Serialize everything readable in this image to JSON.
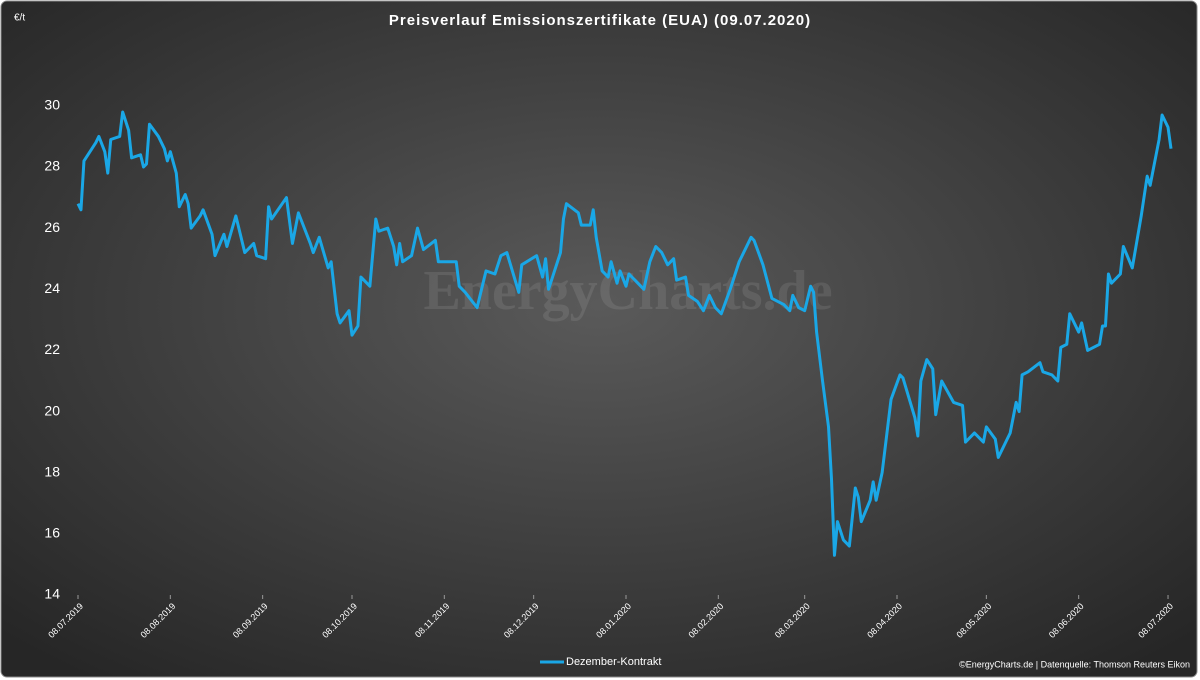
{
  "chart_data": {
    "type": "line",
    "title": "Preisverlauf Emissionszertifikate (EUA) (09.07.2020)",
    "y_unit": "€/t",
    "watermark": "EnergyCharts.de",
    "source": "©EnergyCharts.de | Datenquelle: Thomson Reuters Eikon",
    "grid": false,
    "legend": "bottom",
    "xlim": [
      "2019-07-08",
      "2020-07-09"
    ],
    "xticks": [
      {
        "value": "2019-07-08",
        "label": "08.07.2019"
      },
      {
        "value": "2019-08-08",
        "label": "08.08.2019"
      },
      {
        "value": "2019-09-08",
        "label": "08.09.2019"
      },
      {
        "value": "2019-10-08",
        "label": "08.10.2019"
      },
      {
        "value": "2019-11-08",
        "label": "08.11.2019"
      },
      {
        "value": "2019-12-08",
        "label": "08.12.2019"
      },
      {
        "value": "2020-01-08",
        "label": "08.01.2020"
      },
      {
        "value": "2020-02-08",
        "label": "08.02.2020"
      },
      {
        "value": "2020-03-08",
        "label": "08.03.2020"
      },
      {
        "value": "2020-04-08",
        "label": "08.04.2020"
      },
      {
        "value": "2020-05-08",
        "label": "08.05.2020"
      },
      {
        "value": "2020-06-08",
        "label": "08.06.2020"
      },
      {
        "value": "2020-07-08",
        "label": "08.07.2020"
      }
    ],
    "ylim": [
      14,
      31.5
    ],
    "yticks": [
      14,
      16,
      18,
      20,
      22,
      24,
      26,
      28,
      30
    ],
    "x": [
      "2019-07-08",
      "2019-07-09",
      "2019-07-10",
      "2019-07-14",
      "2019-07-15",
      "2019-07-17",
      "2019-07-18",
      "2019-07-19",
      "2019-07-22",
      "2019-07-23",
      "2019-07-25",
      "2019-07-26",
      "2019-07-29",
      "2019-07-30",
      "2019-07-31",
      "2019-08-01",
      "2019-08-04",
      "2019-08-06",
      "2019-08-07",
      "2019-08-08",
      "2019-08-10",
      "2019-08-11",
      "2019-08-13",
      "2019-08-14",
      "2019-08-15",
      "2019-08-18",
      "2019-08-19",
      "2019-08-22",
      "2019-08-23",
      "2019-08-26",
      "2019-08-27",
      "2019-08-30",
      "2019-09-01",
      "2019-09-02",
      "2019-09-05",
      "2019-09-06",
      "2019-09-09",
      "2019-09-10",
      "2019-09-11",
      "2019-09-16",
      "2019-09-18",
      "2019-09-20",
      "2019-09-24",
      "2019-09-25",
      "2019-09-27",
      "2019-09-30",
      "2019-10-01",
      "2019-10-03",
      "2019-10-04",
      "2019-10-07",
      "2019-10-08",
      "2019-10-10",
      "2019-10-11",
      "2019-10-14",
      "2019-10-16",
      "2019-10-17",
      "2019-10-20",
      "2019-10-22",
      "2019-10-23",
      "2019-10-24",
      "2019-10-25",
      "2019-10-28",
      "2019-10-30",
      "2019-11-01",
      "2019-11-05",
      "2019-11-06",
      "2019-11-12",
      "2019-11-13",
      "2019-11-15",
      "2019-11-19",
      "2019-11-22",
      "2019-11-25",
      "2019-11-27",
      "2019-11-29",
      "2019-12-03",
      "2019-12-04",
      "2019-12-09",
      "2019-12-11",
      "2019-12-12",
      "2019-12-13",
      "2019-12-17",
      "2019-12-18",
      "2019-12-19",
      "2019-12-23",
      "2019-12-24",
      "2019-12-27",
      "2019-12-28",
      "2019-12-29",
      "2019-12-31",
      "2020-01-02",
      "2020-01-03",
      "2020-01-05",
      "2020-01-06",
      "2020-01-08",
      "2020-01-09",
      "2020-01-14",
      "2020-01-16",
      "2020-01-18",
      "2020-01-20",
      "2020-01-22",
      "2020-01-24",
      "2020-01-25",
      "2020-01-28",
      "2020-01-29",
      "2020-02-01",
      "2020-02-03",
      "2020-02-05",
      "2020-02-07",
      "2020-02-09",
      "2020-02-12",
      "2020-02-15",
      "2020-02-19",
      "2020-02-20",
      "2020-02-23",
      "2020-02-26",
      "2020-03-01",
      "2020-03-03",
      "2020-03-04",
      "2020-03-06",
      "2020-03-08",
      "2020-03-10",
      "2020-03-11",
      "2020-03-12",
      "2020-03-14",
      "2020-03-16",
      "2020-03-17",
      "2020-03-18",
      "2020-03-19",
      "2020-03-21",
      "2020-03-23",
      "2020-03-25",
      "2020-03-26",
      "2020-03-27",
      "2020-03-30",
      "2020-03-31",
      "2020-04-01",
      "2020-04-03",
      "2020-04-05",
      "2020-04-06",
      "2020-04-09",
      "2020-04-10",
      "2020-04-14",
      "2020-04-15",
      "2020-04-16",
      "2020-04-18",
      "2020-04-20",
      "2020-04-21",
      "2020-04-23",
      "2020-04-27",
      "2020-04-30",
      "2020-05-01",
      "2020-05-04",
      "2020-05-07",
      "2020-05-08",
      "2020-05-11",
      "2020-05-12",
      "2020-05-16",
      "2020-05-18",
      "2020-05-19",
      "2020-05-20",
      "2020-05-22",
      "2020-05-26",
      "2020-05-27",
      "2020-05-30",
      "2020-06-01",
      "2020-06-02",
      "2020-06-04",
      "2020-06-05",
      "2020-06-08",
      "2020-06-09",
      "2020-06-11",
      "2020-06-15",
      "2020-06-16",
      "2020-06-17",
      "2020-06-18",
      "2020-06-19",
      "2020-06-22",
      "2020-06-23",
      "2020-06-26",
      "2020-06-29",
      "2020-07-01",
      "2020-07-02",
      "2020-07-05",
      "2020-07-06",
      "2020-07-08",
      "2020-07-09"
    ],
    "series": [
      {
        "name": "Dezember-Kontrakt",
        "color": "#1aa7e6",
        "values": [
          26.8,
          26.6,
          28.2,
          28.8,
          29.0,
          28.5,
          27.8,
          28.9,
          29.0,
          29.8,
          29.2,
          28.3,
          28.4,
          28.0,
          28.1,
          29.4,
          29.0,
          28.6,
          28.2,
          28.5,
          27.8,
          26.7,
          27.1,
          26.8,
          26.0,
          26.4,
          26.6,
          25.8,
          25.1,
          25.8,
          25.4,
          26.4,
          25.6,
          25.2,
          25.5,
          25.1,
          25.0,
          26.7,
          26.3,
          27.0,
          25.5,
          26.5,
          25.5,
          25.2,
          25.7,
          24.7,
          24.9,
          23.2,
          22.9,
          23.3,
          22.5,
          22.8,
          24.4,
          24.1,
          26.3,
          25.9,
          26.0,
          25.4,
          24.8,
          25.5,
          24.9,
          25.1,
          26.0,
          25.3,
          25.6,
          24.9,
          24.9,
          24.1,
          23.9,
          23.4,
          24.6,
          24.5,
          25.1,
          25.2,
          23.9,
          24.8,
          25.1,
          24.4,
          25.0,
          24.0,
          25.2,
          26.3,
          26.8,
          26.5,
          26.1,
          26.1,
          26.6,
          25.7,
          24.6,
          24.4,
          24.9,
          24.2,
          24.6,
          24.1,
          24.5,
          24.0,
          24.9,
          25.4,
          25.2,
          24.8,
          25.0,
          24.3,
          24.4,
          23.8,
          23.6,
          23.3,
          23.8,
          23.4,
          23.2,
          24.0,
          24.9,
          25.7,
          25.6,
          24.8,
          23.7,
          23.5,
          23.3,
          23.8,
          23.4,
          23.3,
          24.1,
          23.9,
          22.6,
          21.0,
          19.5,
          17.8,
          15.3,
          16.4,
          15.8,
          15.6,
          17.5,
          17.2,
          16.4,
          17.1,
          17.7,
          17.1,
          18.0,
          19.6,
          20.4,
          21.2,
          21.1,
          19.8,
          19.2,
          21.0,
          21.7,
          21.4,
          19.9,
          21.0,
          20.3,
          20.2,
          19.0,
          19.3,
          19.0,
          19.5,
          19.1,
          18.5,
          19.3,
          20.3,
          20.0,
          21.2,
          21.3,
          21.6,
          21.3,
          21.2,
          21.0,
          22.1,
          22.2,
          23.2,
          22.6,
          22.9,
          22.0,
          22.2,
          22.8,
          22.8,
          24.5,
          24.2,
          24.5,
          25.4,
          24.7,
          26.4,
          27.7,
          27.4,
          28.9,
          29.7,
          29.3,
          28.6
        ]
      }
    ]
  }
}
